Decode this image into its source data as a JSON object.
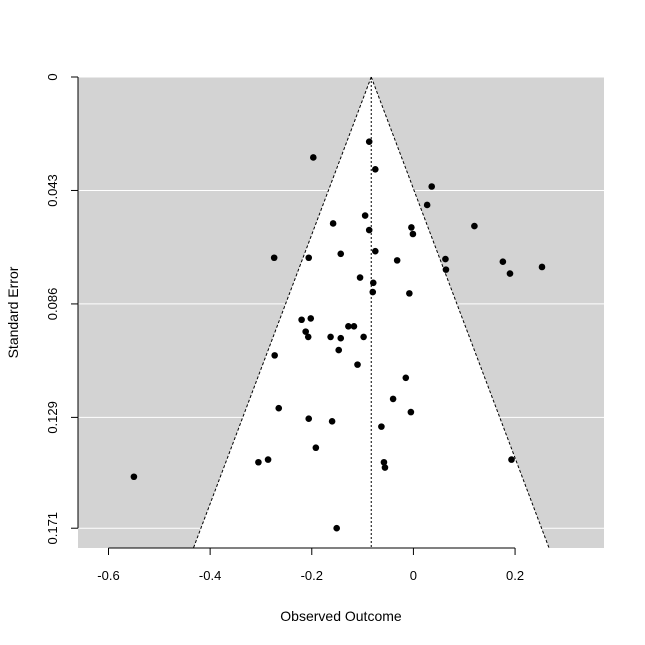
{
  "chart_data": {
    "type": "scatter",
    "subtype": "funnel-plot",
    "title": "",
    "xlabel": "Observed Outcome",
    "ylabel": "Standard Error",
    "xlim": [
      -0.66,
      0.375
    ],
    "ylim": [
      0.0,
      0.1785
    ],
    "y_reversed": true,
    "x_ticks": [
      -0.6,
      -0.4,
      -0.2,
      0.0,
      0.2
    ],
    "x_tick_labels": [
      "-0.6",
      "-0.4",
      "-0.2",
      "0",
      "0.2"
    ],
    "y_ticks": [
      0.0,
      0.043,
      0.086,
      0.129,
      0.171
    ],
    "y_tick_labels": [
      "0",
      "0.043",
      "0.086",
      "0.129",
      "0.171"
    ],
    "estimate": -0.083,
    "funnel_z": 1.96,
    "colors": {
      "panel": "#d3d3d3",
      "funnel": "#ffffff",
      "points": "#000000",
      "gridlines": "#ffffff"
    },
    "points": [
      {
        "x": -0.087,
        "y": 0.0245
      },
      {
        "x": -0.197,
        "y": 0.0305
      },
      {
        "x": -0.075,
        "y": 0.035
      },
      {
        "x": 0.036,
        "y": 0.0415
      },
      {
        "x": 0.027,
        "y": 0.0485
      },
      {
        "x": -0.095,
        "y": 0.0525
      },
      {
        "x": -0.158,
        "y": 0.0555
      },
      {
        "x": 0.12,
        "y": 0.0565
      },
      {
        "x": -0.004,
        "y": 0.057
      },
      {
        "x": -0.087,
        "y": 0.058
      },
      {
        "x": -0.001,
        "y": 0.0595
      },
      {
        "x": -0.075,
        "y": 0.066
      },
      {
        "x": -0.143,
        "y": 0.067
      },
      {
        "x": -0.274,
        "y": 0.0685
      },
      {
        "x": -0.206,
        "y": 0.0685
      },
      {
        "x": -0.032,
        "y": 0.0695
      },
      {
        "x": 0.063,
        "y": 0.069
      },
      {
        "x": 0.176,
        "y": 0.07
      },
      {
        "x": 0.253,
        "y": 0.072
      },
      {
        "x": 0.064,
        "y": 0.073
      },
      {
        "x": 0.19,
        "y": 0.0745
      },
      {
        "x": -0.105,
        "y": 0.076
      },
      {
        "x": -0.079,
        "y": 0.078
      },
      {
        "x": -0.08,
        "y": 0.0815
      },
      {
        "x": -0.008,
        "y": 0.082
      },
      {
        "x": -0.22,
        "y": 0.092
      },
      {
        "x": -0.202,
        "y": 0.0915
      },
      {
        "x": -0.128,
        "y": 0.0945
      },
      {
        "x": -0.117,
        "y": 0.0945
      },
      {
        "x": -0.212,
        "y": 0.0965
      },
      {
        "x": -0.207,
        "y": 0.0985
      },
      {
        "x": -0.163,
        "y": 0.0985
      },
      {
        "x": -0.143,
        "y": 0.099
      },
      {
        "x": -0.098,
        "y": 0.0985
      },
      {
        "x": -0.147,
        "y": 0.1035
      },
      {
        "x": -0.273,
        "y": 0.1055
      },
      {
        "x": -0.11,
        "y": 0.109
      },
      {
        "x": -0.015,
        "y": 0.114
      },
      {
        "x": -0.04,
        "y": 0.122
      },
      {
        "x": -0.265,
        "y": 0.1255
      },
      {
        "x": -0.005,
        "y": 0.127
      },
      {
        "x": -0.206,
        "y": 0.1295
      },
      {
        "x": -0.16,
        "y": 0.1305
      },
      {
        "x": -0.063,
        "y": 0.1325
      },
      {
        "x": -0.192,
        "y": 0.1405
      },
      {
        "x": -0.286,
        "y": 0.145
      },
      {
        "x": -0.305,
        "y": 0.146
      },
      {
        "x": 0.193,
        "y": 0.145
      },
      {
        "x": -0.058,
        "y": 0.146
      },
      {
        "x": -0.056,
        "y": 0.148
      },
      {
        "x": -0.55,
        "y": 0.1515
      },
      {
        "x": -0.151,
        "y": 0.171
      }
    ]
  }
}
